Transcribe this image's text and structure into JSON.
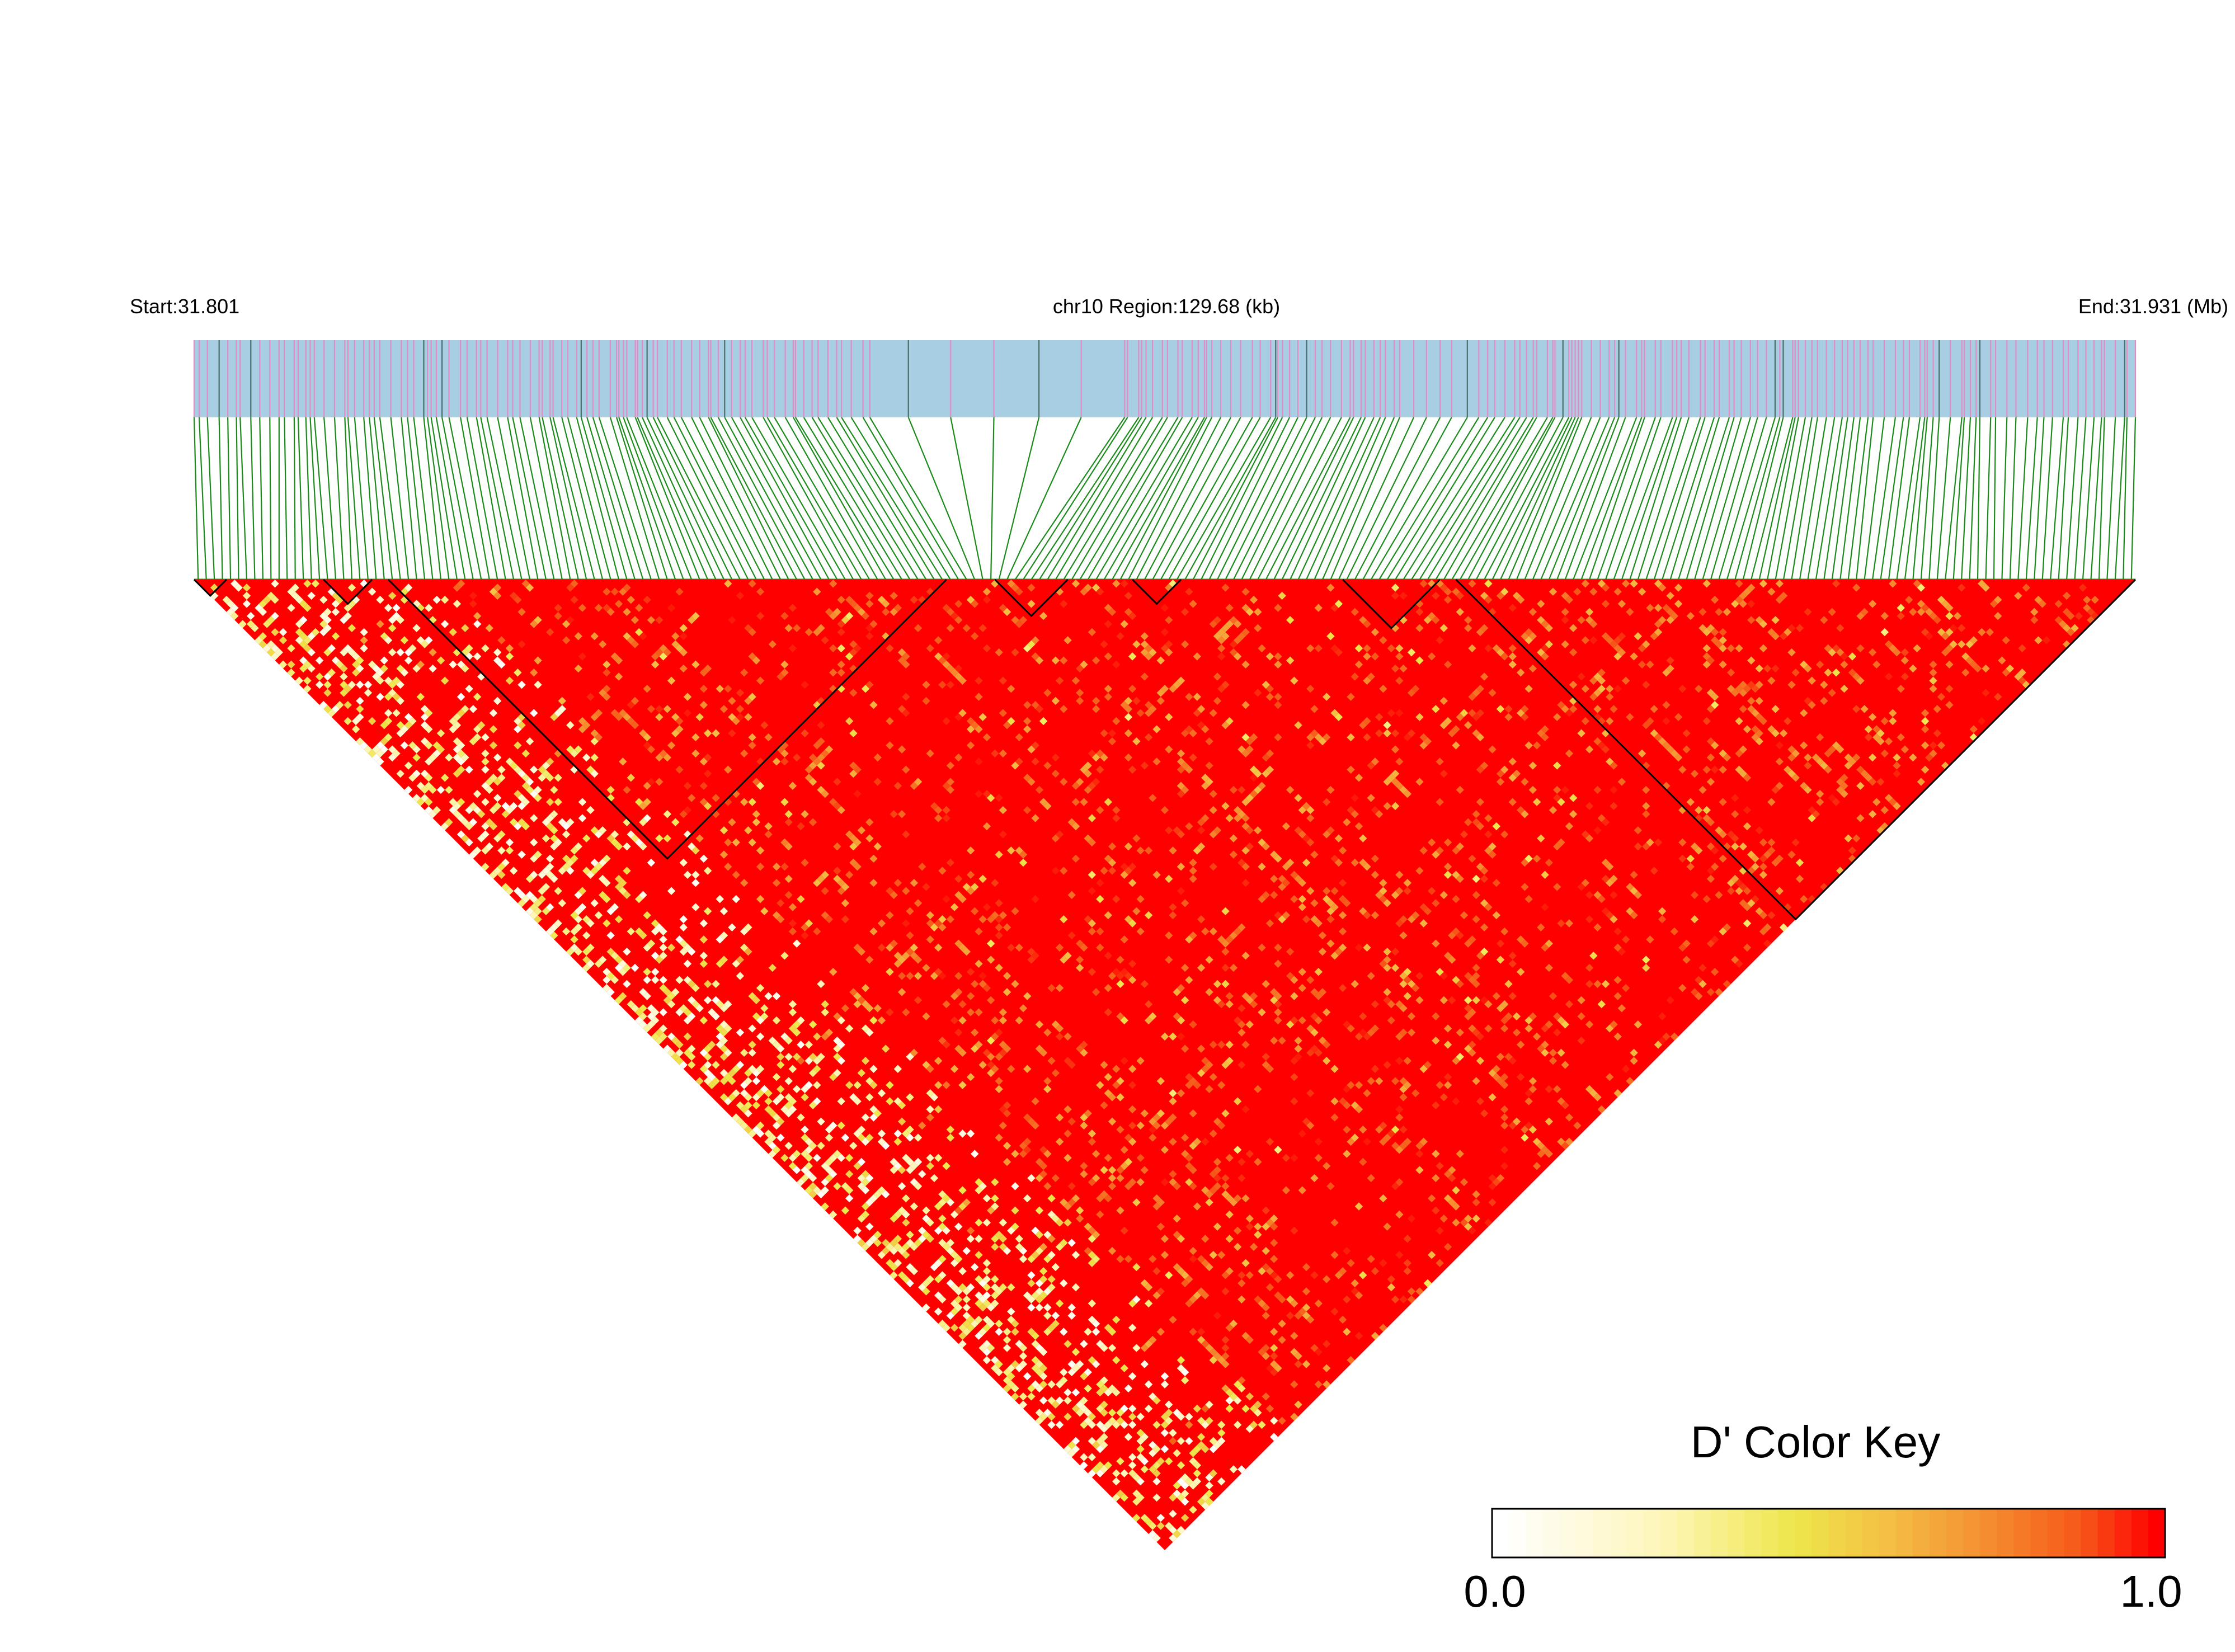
{
  "header": {
    "start_label": "Start:31.801",
    "region_label": "chr10 Region:129.68 (kb)",
    "end_label": "End:31.931 (Mb)"
  },
  "legend": {
    "title": "D' Color Key",
    "min_label": "0.0",
    "max_label": "1.0",
    "colors": [
      "#ffffff",
      "#fdf6b8",
      "#f5ea6a",
      "#eee64a",
      "#f4bc44",
      "#f58a2e",
      "#f65a1a",
      "#fb1a0a",
      "#ff0000"
    ]
  },
  "chart_data": {
    "type": "heatmap",
    "title": "",
    "region": {
      "chromosome": "chr10",
      "start_mb": 31.801,
      "end_mb": 31.931,
      "length_kb": 129.68
    },
    "value_range": [
      0,
      1
    ],
    "n_snps": 240,
    "dominant_value": 1.0,
    "haplotype_blocks_snp_index": [
      [
        0,
        4
      ],
      [
        16,
        22
      ],
      [
        24,
        93
      ],
      [
        99,
        108
      ],
      [
        116,
        122
      ],
      [
        142,
        154
      ],
      [
        156,
        240
      ]
    ],
    "track_colors": {
      "gene_band": "#a8cee4",
      "snp_tick": "#e38bc5",
      "dense_tick": "#4a6f6a",
      "connector": "#1a8a1a",
      "block_outline": "#000000"
    }
  }
}
